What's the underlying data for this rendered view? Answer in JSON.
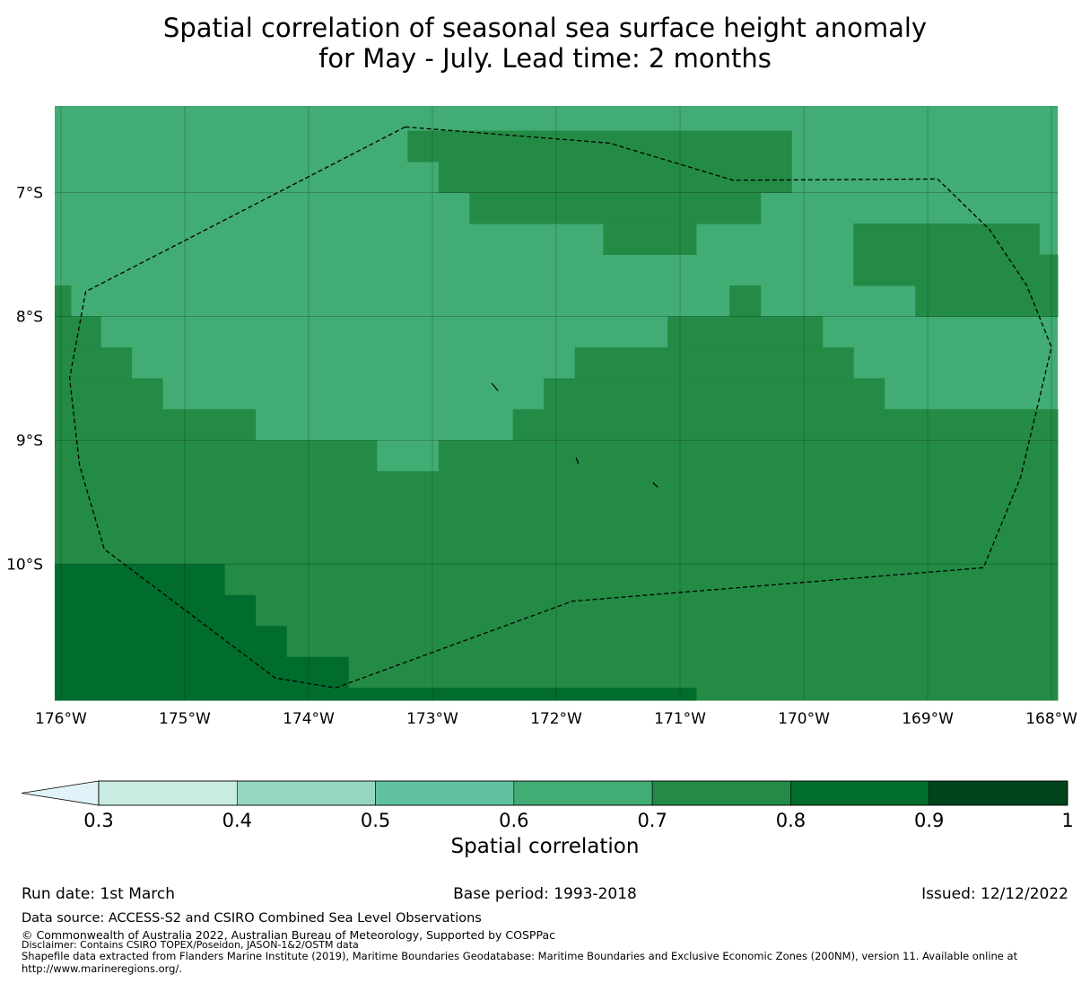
{
  "chart_data": {
    "type": "heatmap",
    "title_line1": "Spatial correlation of seasonal sea surface height anomaly",
    "title_line2": "for May - July. Lead time: 2 months",
    "grid_resolution_deg": 0.25,
    "lon_range": [
      -176.05,
      -167.95
    ],
    "lat_range": [
      -6.3,
      -11.1
    ],
    "x_ticks": [
      {
        "value": -176,
        "label": "176°W"
      },
      {
        "value": -175,
        "label": "175°W"
      },
      {
        "value": -174,
        "label": "174°W"
      },
      {
        "value": -173,
        "label": "173°W"
      },
      {
        "value": -172,
        "label": "172°W"
      },
      {
        "value": -171,
        "label": "171°W"
      },
      {
        "value": -170,
        "label": "170°W"
      },
      {
        "value": -169,
        "label": "169°W"
      },
      {
        "value": -168,
        "label": "168°W"
      }
    ],
    "y_ticks": [
      {
        "value": -7,
        "label": "7°S"
      },
      {
        "value": -8,
        "label": "8°S"
      },
      {
        "value": -9,
        "label": "9°S"
      },
      {
        "value": -10,
        "label": "10°S"
      }
    ],
    "background_class": "0.6-0.7",
    "regions": [
      {
        "class": "0.7-0.8",
        "lat_top": -6.5,
        "lat_bottom": -6.75,
        "lon_west": -173.2,
        "lon_east": -170.1
      },
      {
        "class": "0.7-0.8",
        "lat_top": -6.75,
        "lat_bottom": -7.0,
        "lon_west": -172.95,
        "lon_east": -170.1
      },
      {
        "class": "0.7-0.8",
        "lat_top": -7.0,
        "lat_bottom": -7.25,
        "lon_west": -172.7,
        "lon_east": -170.35
      },
      {
        "class": "0.7-0.8",
        "lat_top": -7.25,
        "lat_bottom": -7.5,
        "lon_west": -171.62,
        "lon_east": -170.87
      },
      {
        "class": "0.7-0.8",
        "lat_top": -7.25,
        "lat_bottom": -7.5,
        "lon_west": -169.6,
        "lon_east": -168.1
      },
      {
        "class": "0.7-0.8",
        "lat_top": -7.5,
        "lat_bottom": -7.75,
        "lon_west": -169.6,
        "lon_east": -167.95
      },
      {
        "class": "0.7-0.8",
        "lat_top": -7.75,
        "lat_bottom": -8.0,
        "lon_west": -169.1,
        "lon_east": -167.95
      },
      {
        "class": "0.7-0.8",
        "lat_top": -7.75,
        "lat_bottom": -8.0,
        "lon_west": -170.6,
        "lon_east": -170.35
      },
      {
        "class": "0.7-0.8",
        "lat_top": -7.75,
        "lat_bottom": -8.0,
        "lon_west": -176.05,
        "lon_east": -175.92
      },
      {
        "class": "0.7-0.8",
        "lat_top": -8.0,
        "lat_bottom": -8.25,
        "lon_west": -176.05,
        "lon_east": -175.68
      },
      {
        "class": "0.7-0.8",
        "lat_top": -8.0,
        "lat_bottom": -8.25,
        "lon_west": -171.1,
        "lon_east": -169.85
      },
      {
        "class": "0.7-0.8",
        "lat_top": -8.25,
        "lat_bottom": -8.5,
        "lon_west": -176.05,
        "lon_east": -175.43
      },
      {
        "class": "0.7-0.8",
        "lat_top": -8.25,
        "lat_bottom": -8.5,
        "lon_west": -171.85,
        "lon_east": -169.6
      },
      {
        "class": "0.7-0.8",
        "lat_top": -8.5,
        "lat_bottom": -8.75,
        "lon_west": -176.05,
        "lon_east": -175.18
      },
      {
        "class": "0.7-0.8",
        "lat_top": -8.5,
        "lat_bottom": -8.75,
        "lon_west": -172.1,
        "lon_east": -169.35
      },
      {
        "class": "0.7-0.8",
        "lat_top": -8.75,
        "lat_bottom": -9.0,
        "lon_west": -176.05,
        "lon_east": -174.43
      },
      {
        "class": "0.7-0.8",
        "lat_top": -8.75,
        "lat_bottom": -9.0,
        "lon_west": -172.35,
        "lon_east": -167.95
      },
      {
        "class": "0.7-0.8",
        "lat_top": -9.0,
        "lat_bottom": -9.25,
        "lon_west": -176.05,
        "lon_east": -173.45
      },
      {
        "class": "0.7-0.8",
        "lat_top": -9.0,
        "lat_bottom": -9.25,
        "lon_west": -172.95,
        "lon_east": -167.95
      },
      {
        "class": "0.7-0.8",
        "lat_top": -9.25,
        "lat_bottom": -10.0,
        "lon_west": -176.05,
        "lon_east": -167.95
      },
      {
        "class": "0.7-0.8",
        "lat_top": -10.0,
        "lat_bottom": -11.1,
        "lon_west": -174.68,
        "lon_east": -167.95
      },
      {
        "class": "0.8-0.9",
        "lat_top": -10.0,
        "lat_bottom": -10.25,
        "lon_west": -176.05,
        "lon_east": -174.68
      },
      {
        "class": "0.8-0.9",
        "lat_top": -10.25,
        "lat_bottom": -10.5,
        "lon_west": -176.05,
        "lon_east": -174.43
      },
      {
        "class": "0.8-0.9",
        "lat_top": -10.5,
        "lat_bottom": -10.75,
        "lon_west": -176.05,
        "lon_east": -174.18
      },
      {
        "class": "0.8-0.9",
        "lat_top": -10.75,
        "lat_bottom": -11.0,
        "lon_west": -176.05,
        "lon_east": -173.68
      },
      {
        "class": "0.8-0.9",
        "lat_top": -11.0,
        "lat_bottom": -11.1,
        "lon_west": -176.05,
        "lon_east": -173.18
      },
      {
        "class": "0.8-0.9",
        "lat_top": -11.0,
        "lat_bottom": -11.1,
        "lon_west": -173.18,
        "lon_east": -170.87
      }
    ],
    "eez_boundary": [
      [
        -173.22,
        -6.47
      ],
      [
        -171.57,
        -6.6
      ],
      [
        -170.57,
        -6.9
      ],
      [
        -168.92,
        -6.89
      ],
      [
        -168.5,
        -7.3
      ],
      [
        -168.2,
        -7.75
      ],
      [
        -168.0,
        -8.25
      ],
      [
        -168.25,
        -9.3
      ],
      [
        -168.55,
        -10.03
      ],
      [
        -171.87,
        -10.3
      ],
      [
        -173.78,
        -11.0
      ],
      [
        -174.27,
        -10.92
      ],
      [
        -175.65,
        -9.88
      ],
      [
        -175.85,
        -9.2
      ],
      [
        -175.93,
        -8.5
      ],
      [
        -175.8,
        -7.8
      ],
      [
        -173.22,
        -6.47
      ]
    ],
    "islands": [
      [
        [
          -172.52,
          -8.54
        ],
        [
          -172.47,
          -8.6
        ]
      ],
      [
        [
          -171.84,
          -9.14
        ],
        [
          -171.82,
          -9.19
        ]
      ],
      [
        [
          -171.22,
          -9.34
        ],
        [
          -171.18,
          -9.38
        ]
      ]
    ],
    "colorbar": {
      "label": "Spatial correlation",
      "ticks": [
        "0.3",
        "0.4",
        "0.5",
        "0.6",
        "0.7",
        "0.8",
        "0.9",
        "1"
      ],
      "bins": [
        {
          "range": "0.3-0.4",
          "color": "#c9ebe1"
        },
        {
          "range": "0.4-0.5",
          "color": "#95d6c3"
        },
        {
          "range": "0.5-0.6",
          "color": "#61c19f"
        },
        {
          "range": "0.6-0.7",
          "color": "#41ac74"
        },
        {
          "range": "0.7-0.8",
          "color": "#238b45"
        },
        {
          "range": "0.8-0.9",
          "color": "#006d2c"
        },
        {
          "range": "0.9-1",
          "color": "#00441b"
        }
      ],
      "under_color": "#e0f3f8"
    }
  },
  "footer": {
    "run_date": "Run date: 1st March",
    "base_period": "Base period: 1993-2018",
    "issued": "Issued: 12/12/2022",
    "data_source": "Data source: ACCESS-S2 and CSIRO Combined Sea Level Observations",
    "copyright": "© Commonwealth of Australia 2022, Australian Bureau of Meteorology, Supported by COSPPac",
    "disclaimer": "Disclaimer: Contains CSIRO TOPEX/Poseidon, JASON-1&2/OSTM data",
    "shapefile": "Shapefile data extracted from Flanders Marine Institute (2019), Maritime Boundaries Geodatabase: Maritime Boundaries and Exclusive Economic Zones (200NM), version 11. Available online at",
    "url": "http://www.marineregions.org/."
  }
}
